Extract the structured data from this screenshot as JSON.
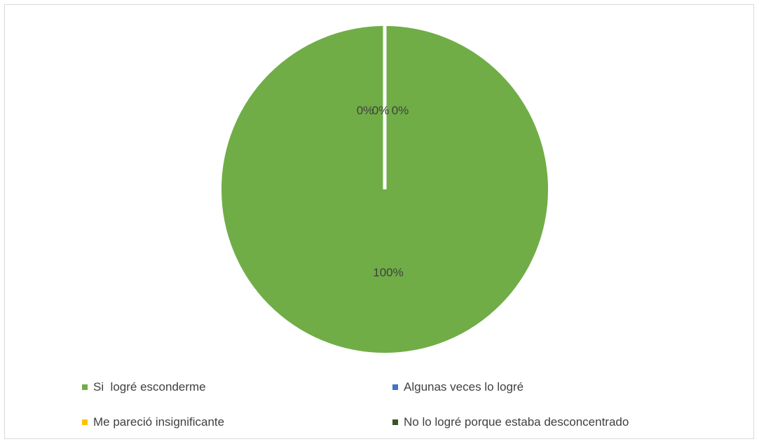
{
  "chart_data": {
    "type": "pie",
    "title": "",
    "slices": [
      {
        "label": "Si  logré esconderme",
        "value": 100,
        "data_label": "100%",
        "color": "#70AD47"
      },
      {
        "label": "Algunas veces lo logré",
        "value": 0,
        "data_label": "0%",
        "color": "#4472C4"
      },
      {
        "label": "Me pareció insignificante",
        "value": 0,
        "data_label": "0%",
        "color": "#FFC000"
      },
      {
        "label": "No lo logré porque estaba desconcentrado",
        "value": 0,
        "data_label": "0%",
        "color": "#375623"
      }
    ],
    "legend_position": "bottom"
  }
}
